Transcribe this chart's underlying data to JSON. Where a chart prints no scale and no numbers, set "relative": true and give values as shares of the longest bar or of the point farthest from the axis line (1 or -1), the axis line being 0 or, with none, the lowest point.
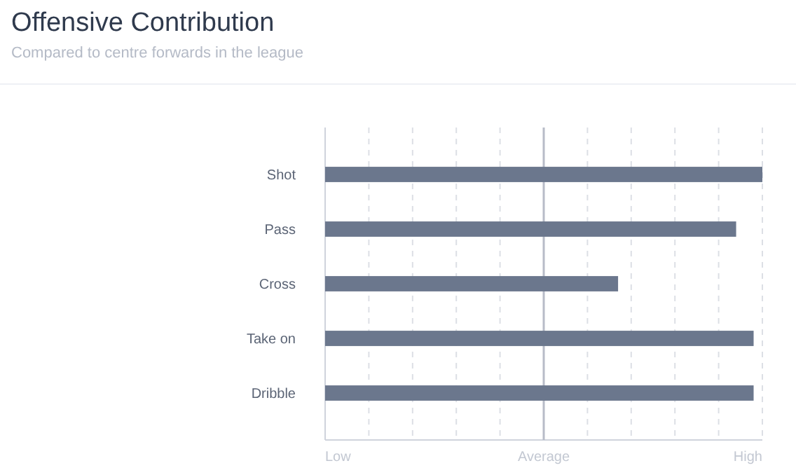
{
  "chart_data": {
    "type": "bar",
    "orientation": "horizontal",
    "relative": true,
    "title": "Offensive Contribution",
    "subtitle": "Compared to centre forwards in the league",
    "categories": [
      "Shot",
      "Pass",
      "Cross",
      "Take on",
      "Dribble"
    ],
    "values": [
      1,
      0.94,
      0.67,
      0.98,
      0.98
    ],
    "color": "#6b778d",
    "grid": "x",
    "ref_lines": [
      {
        "axis": "x",
        "value": 0.5,
        "label": "Average",
        "color": "#b8bcc8"
      }
    ],
    "annotations": [
      "Low",
      "High"
    ]
  }
}
